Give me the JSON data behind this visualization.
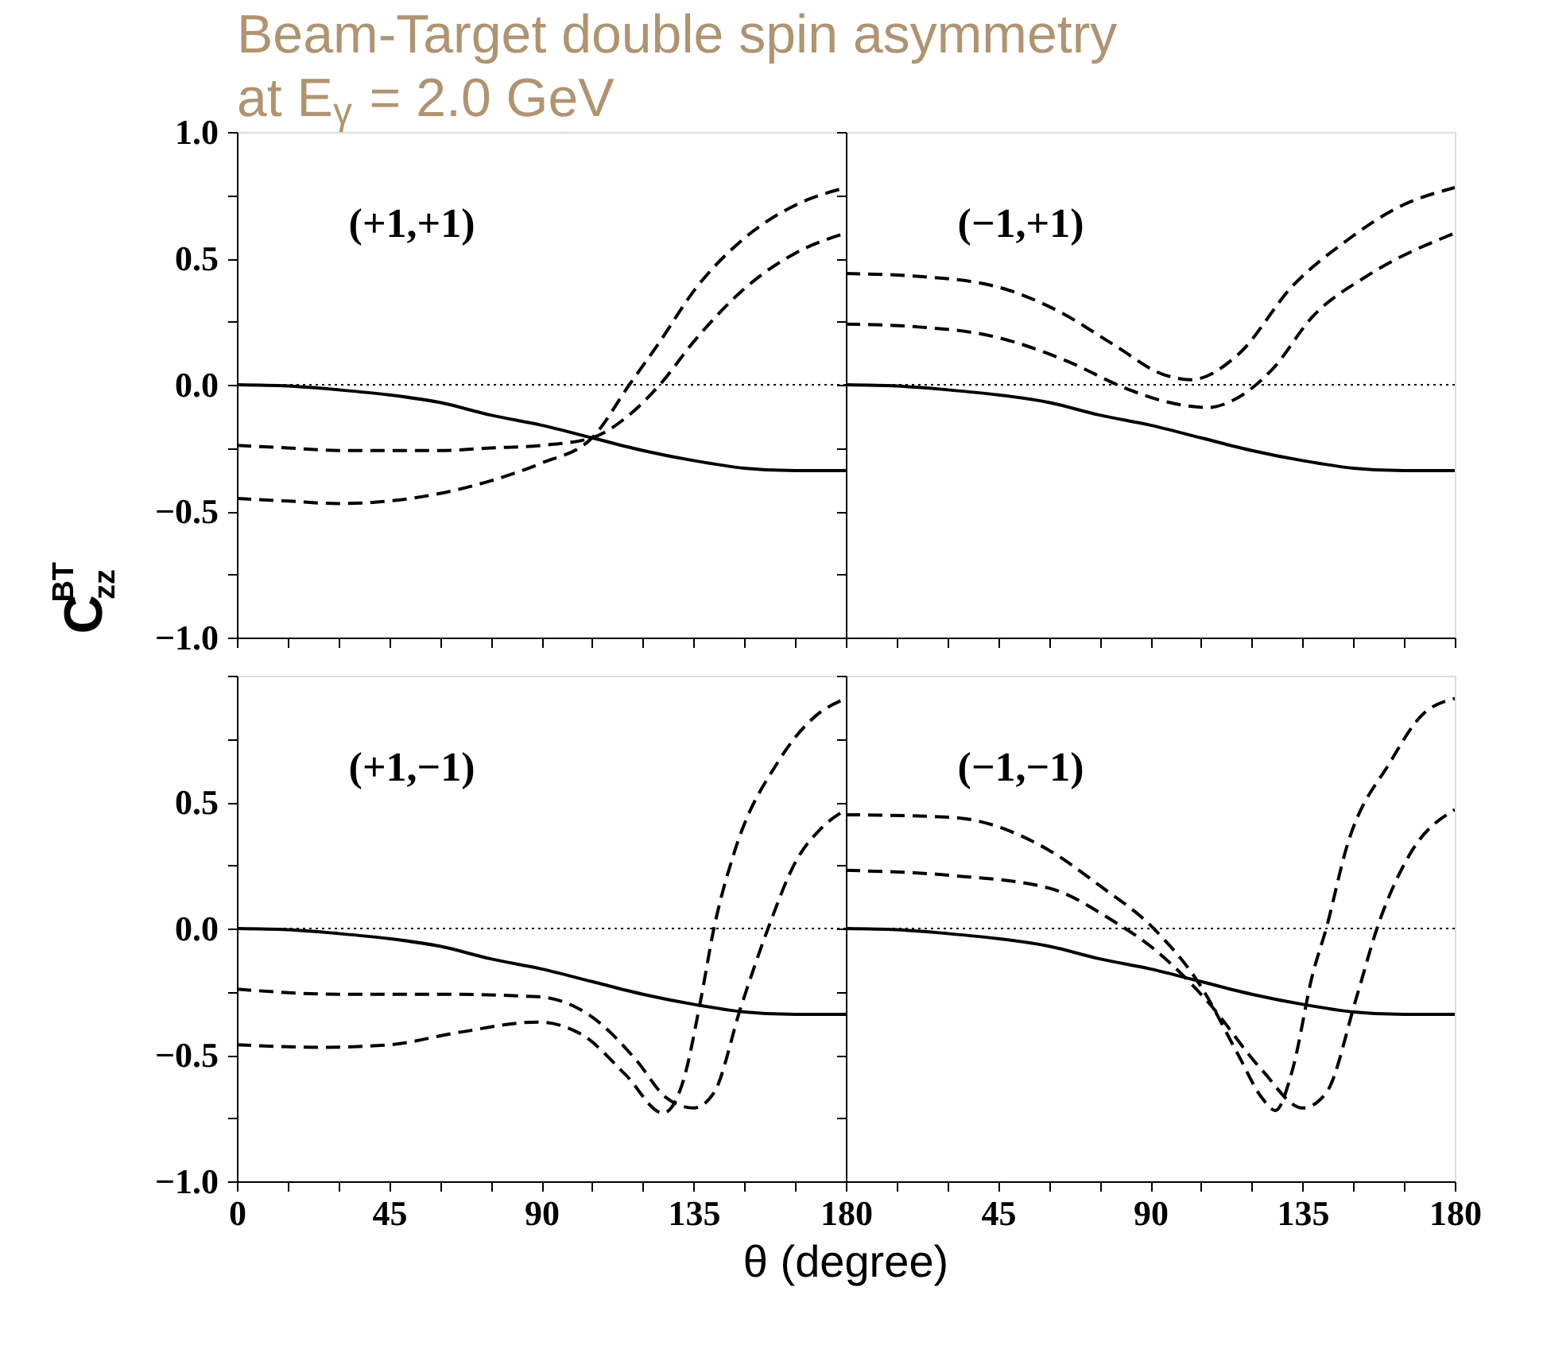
{
  "chart_data": [
    {
      "type": "line",
      "title": "Beam-Target double spin asymmetry at E$_{γ}$ = 2.0 GeV",
      "ylabel": "C$_{zz}$$^{BT}$",
      "annotations": [
        "(+1,+1)"
      ],
      "xlim": [
        0,
        180
      ],
      "ylim": [
        -1,
        1
      ],
      "tick_labels": "y",
      "grid": false,
      "xticks": [
        {
          "value": 0,
          "label": null
        },
        {
          "value": 15,
          "label": null
        },
        {
          "value": 30,
          "label": null
        },
        {
          "value": 45,
          "label": null
        },
        {
          "value": 60,
          "label": null
        },
        {
          "value": 75,
          "label": null
        },
        {
          "value": 90,
          "label": null
        },
        {
          "value": 105,
          "label": null
        },
        {
          "value": 120,
          "label": null
        },
        {
          "value": 135,
          "label": null
        },
        {
          "value": 150,
          "label": null
        },
        {
          "value": 165,
          "label": null
        },
        {
          "value": 180,
          "label": null
        }
      ],
      "yticks": [
        {
          "value": 1,
          "label": "1.0"
        },
        {
          "value": 0.75,
          "label": null
        },
        {
          "value": 0.5,
          "label": "0.5"
        },
        {
          "value": 0.25,
          "label": null
        },
        {
          "value": 0,
          "label": "0.0"
        },
        {
          "value": -0.25,
          "label": null
        },
        {
          "value": -0.5,
          "label": "−0.5"
        },
        {
          "value": -0.75,
          "label": null
        },
        {
          "value": -1,
          "label": "−1.0"
        }
      ],
      "ref_lines": [
        {
          "axis": "y",
          "value": 0,
          "line_style": "dotted",
          "color": "#000000"
        }
      ],
      "series": [
        {
          "color": "#000000",
          "line_style": "solid",
          "x": [
            0,
            15,
            30,
            45,
            60,
            75,
            90,
            105,
            120,
            135,
            150,
            165,
            180
          ],
          "values": [
            0,
            -0.005,
            -0.02,
            -0.04,
            -0.07,
            -0.12,
            -0.16,
            -0.21,
            -0.26,
            -0.3,
            -0.33,
            -0.34,
            -0.34
          ]
        },
        {
          "color": "#000000",
          "line_style": "dashed",
          "x": [
            0,
            15,
            30,
            45,
            60,
            75,
            90,
            105,
            115,
            125,
            135,
            150,
            165,
            180
          ],
          "values": [
            -0.24,
            -0.25,
            -0.26,
            -0.26,
            -0.26,
            -0.25,
            -0.24,
            -0.21,
            -0.13,
            0.0,
            0.17,
            0.38,
            0.52,
            0.6
          ]
        },
        {
          "color": "#000000",
          "line_style": "dashed",
          "x": [
            0,
            15,
            30,
            45,
            60,
            75,
            90,
            105,
            116,
            125,
            135,
            150,
            165,
            180
          ],
          "values": [
            -0.45,
            -0.46,
            -0.47,
            -0.46,
            -0.43,
            -0.38,
            -0.31,
            -0.21,
            0.0,
            0.17,
            0.37,
            0.58,
            0.71,
            0.78
          ]
        }
      ]
    },
    {
      "type": "line",
      "annotations": [
        "(−1,+1)"
      ],
      "xlim": [
        0,
        180
      ],
      "ylim": [
        -1,
        1
      ],
      "tick_labels": false,
      "grid": false,
      "xticks": [
        {
          "value": 0,
          "label": null
        },
        {
          "value": 15,
          "label": null
        },
        {
          "value": 30,
          "label": null
        },
        {
          "value": 45,
          "label": null
        },
        {
          "value": 60,
          "label": null
        },
        {
          "value": 75,
          "label": null
        },
        {
          "value": 90,
          "label": null
        },
        {
          "value": 105,
          "label": null
        },
        {
          "value": 120,
          "label": null
        },
        {
          "value": 135,
          "label": null
        },
        {
          "value": 150,
          "label": null
        },
        {
          "value": 165,
          "label": null
        },
        {
          "value": 180,
          "label": null
        }
      ],
      "yticks": [
        {
          "value": 1,
          "label": null
        },
        {
          "value": 0.75,
          "label": null
        },
        {
          "value": 0.5,
          "label": null
        },
        {
          "value": 0.25,
          "label": null
        },
        {
          "value": 0,
          "label": null
        },
        {
          "value": -0.25,
          "label": null
        },
        {
          "value": -0.5,
          "label": null
        },
        {
          "value": -0.75,
          "label": null
        },
        {
          "value": -1,
          "label": null
        }
      ],
      "ref_lines": [
        {
          "axis": "y",
          "value": 0,
          "line_style": "dotted",
          "color": "#000000"
        }
      ],
      "series": [
        {
          "color": "#000000",
          "line_style": "solid",
          "x": [
            0,
            15,
            30,
            45,
            60,
            75,
            90,
            105,
            120,
            135,
            150,
            165,
            180
          ],
          "values": [
            0,
            -0.005,
            -0.02,
            -0.04,
            -0.07,
            -0.12,
            -0.16,
            -0.21,
            -0.26,
            -0.3,
            -0.33,
            -0.34,
            -0.34
          ]
        },
        {
          "color": "#000000",
          "line_style": "dashed",
          "x": [
            0,
            20,
            44,
            66,
            82,
            94,
            107,
            116,
            126,
            138,
            154,
            180
          ],
          "values": [
            0.24,
            0.23,
            0.19,
            0.09,
            -0.01,
            -0.065,
            -0.09,
            -0.05,
            0.06,
            0.27,
            0.43,
            0.6
          ]
        },
        {
          "color": "#000000",
          "line_style": "dashed",
          "x": [
            0,
            20,
            44,
            63,
            79,
            94,
            102,
            116,
            132,
            148,
            163,
            180
          ],
          "values": [
            0.44,
            0.43,
            0.39,
            0.29,
            0.16,
            0.04,
            0.02,
            0.12,
            0.39,
            0.57,
            0.7,
            0.78
          ]
        }
      ]
    },
    {
      "type": "line",
      "xlabel": "θ  (degree)",
      "annotations": [
        "(+1,−1)"
      ],
      "xlim": [
        0,
        180
      ],
      "ylim": [
        -1,
        1
      ],
      "grid": false,
      "xticks": [
        {
          "value": 0,
          "label": "0"
        },
        {
          "value": 15,
          "label": null
        },
        {
          "value": 30,
          "label": null
        },
        {
          "value": 45,
          "label": "45"
        },
        {
          "value": 60,
          "label": null
        },
        {
          "value": 75,
          "label": null
        },
        {
          "value": 90,
          "label": "90"
        },
        {
          "value": 105,
          "label": null
        },
        {
          "value": 120,
          "label": null
        },
        {
          "value": 135,
          "label": "135"
        },
        {
          "value": 150,
          "label": null
        },
        {
          "value": 165,
          "label": null
        },
        {
          "value": 180,
          "label": "180"
        }
      ],
      "yticks": [
        {
          "value": 1,
          "label": null
        },
        {
          "value": 0.75,
          "label": null
        },
        {
          "value": 0.5,
          "label": "0.5"
        },
        {
          "value": 0.25,
          "label": null
        },
        {
          "value": 0,
          "label": "0.0"
        },
        {
          "value": -0.25,
          "label": null
        },
        {
          "value": -0.5,
          "label": "−0.5"
        },
        {
          "value": -0.75,
          "label": null
        },
        {
          "value": -1,
          "label": "−1.0"
        }
      ],
      "ref_lines": [
        {
          "axis": "y",
          "value": 0,
          "line_style": "dotted",
          "color": "#000000"
        }
      ],
      "series": [
        {
          "color": "#000000",
          "line_style": "solid",
          "x": [
            0,
            15,
            30,
            45,
            60,
            75,
            90,
            105,
            120,
            135,
            150,
            165,
            180
          ],
          "values": [
            0,
            -0.005,
            -0.02,
            -0.04,
            -0.07,
            -0.12,
            -0.16,
            -0.21,
            -0.26,
            -0.3,
            -0.33,
            -0.34,
            -0.34
          ]
        },
        {
          "color": "#000000",
          "line_style": "dashed",
          "x": [
            0,
            30,
            60,
            89,
            105,
            118,
            127,
            135,
            141,
            149,
            157,
            165,
            173,
            180
          ],
          "values": [
            -0.24,
            -0.26,
            -0.26,
            -0.27,
            -0.35,
            -0.52,
            -0.67,
            -0.71,
            -0.65,
            -0.31,
            0.0,
            0.26,
            0.4,
            0.47
          ]
        },
        {
          "color": "#000000",
          "line_style": "dashed",
          "x": [
            0,
            26,
            45,
            66,
            89,
            102,
            115,
            126,
            132,
            137,
            141,
            147,
            160,
            171,
            180
          ],
          "values": [
            -0.46,
            -0.47,
            -0.46,
            -0.41,
            -0.37,
            -0.42,
            -0.58,
            -0.73,
            -0.6,
            -0.29,
            0.0,
            0.3,
            0.66,
            0.84,
            0.91
          ]
        }
      ]
    },
    {
      "type": "line",
      "annotations": [
        "(−1,−1)"
      ],
      "xlim": [
        0,
        180
      ],
      "ylim": [
        -1,
        1
      ],
      "tick_labels": "x",
      "grid": false,
      "xticks": [
        {
          "value": 0,
          "label": null
        },
        {
          "value": 15,
          "label": null
        },
        {
          "value": 30,
          "label": null
        },
        {
          "value": 45,
          "label": "45"
        },
        {
          "value": 60,
          "label": null
        },
        {
          "value": 75,
          "label": null
        },
        {
          "value": 90,
          "label": "90"
        },
        {
          "value": 105,
          "label": null
        },
        {
          "value": 120,
          "label": null
        },
        {
          "value": 135,
          "label": "135"
        },
        {
          "value": 150,
          "label": null
        },
        {
          "value": 165,
          "label": null
        },
        {
          "value": 180,
          "label": "180"
        }
      ],
      "yticks": [
        {
          "value": 1,
          "label": null
        },
        {
          "value": 0.75,
          "label": null
        },
        {
          "value": 0.5,
          "label": null
        },
        {
          "value": 0.25,
          "label": null
        },
        {
          "value": 0,
          "label": null
        },
        {
          "value": -0.25,
          "label": null
        },
        {
          "value": -0.5,
          "label": null
        },
        {
          "value": -0.75,
          "label": null
        },
        {
          "value": -1,
          "label": null
        }
      ],
      "ref_lines": [
        {
          "axis": "y",
          "value": 0,
          "line_style": "dotted",
          "color": "#000000"
        }
      ],
      "series": [
        {
          "color": "#000000",
          "line_style": "solid",
          "x": [
            0,
            15,
            30,
            45,
            60,
            75,
            90,
            105,
            120,
            135,
            150,
            165,
            180
          ],
          "values": [
            0,
            -0.005,
            -0.02,
            -0.04,
            -0.07,
            -0.12,
            -0.16,
            -0.21,
            -0.26,
            -0.3,
            -0.33,
            -0.34,
            -0.34
          ]
        },
        {
          "color": "#000000",
          "line_style": "dashed",
          "x": [
            0,
            31,
            60,
            79,
            91,
            107,
            123,
            135,
            142,
            151,
            157,
            167,
            180
          ],
          "values": [
            0.23,
            0.21,
            0.16,
            0.03,
            -0.08,
            -0.29,
            -0.56,
            -0.71,
            -0.65,
            -0.27,
            0.0,
            0.3,
            0.47
          ]
        },
        {
          "color": "#000000",
          "line_style": "dashed",
          "x": [
            0,
            31,
            60,
            75,
            91,
            105,
            116,
            123,
            127,
            132,
            138,
            142,
            148,
            161,
            170,
            180
          ],
          "values": [
            0.45,
            0.44,
            0.31,
            0.17,
            0.0,
            -0.23,
            -0.5,
            -0.67,
            -0.72,
            -0.56,
            -0.18,
            0.0,
            0.32,
            0.66,
            0.84,
            0.91
          ]
        }
      ]
    }
  ]
}
